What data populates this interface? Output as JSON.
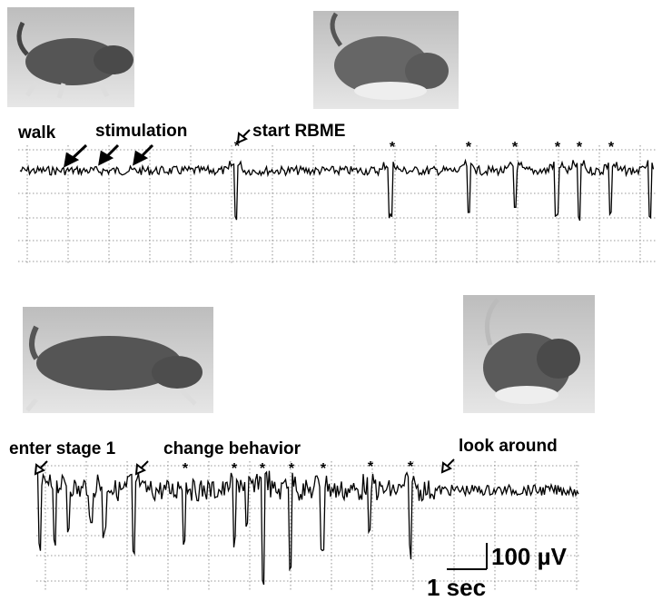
{
  "panel_top": {
    "labels": [
      "walk",
      "stimulation",
      "start RBME"
    ]
  },
  "panel_bottom": {
    "labels": [
      "enter stage 1",
      "change behavior",
      "look around"
    ]
  },
  "scale_bar": {
    "voltage": "100 µV",
    "time": "1 sec"
  }
}
